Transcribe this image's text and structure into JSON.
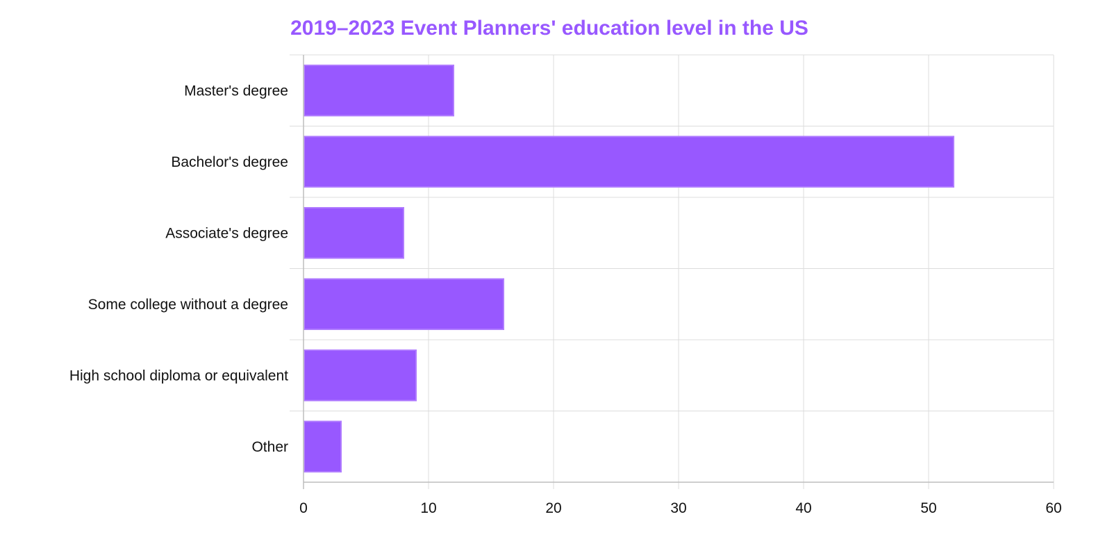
{
  "chart_data": {
    "type": "bar",
    "orientation": "horizontal",
    "title": "2019–2023 Event Planners' education level in the US",
    "xlabel": "",
    "ylabel": "",
    "categories": [
      "Master's degree",
      "Bachelor's degree",
      "Associate's degree",
      "Some college without a degree",
      "High school diploma or equivalent",
      "Other"
    ],
    "values": [
      12,
      52,
      8,
      16,
      9,
      3
    ],
    "xlim": [
      0,
      60
    ],
    "xticks": [
      0,
      10,
      20,
      30,
      40,
      50,
      60
    ],
    "grid": true,
    "legend": "none"
  },
  "colors": {
    "bar_fill": "#9858ff",
    "bar_stroke": "#b07cff",
    "title": "#9858ff"
  }
}
